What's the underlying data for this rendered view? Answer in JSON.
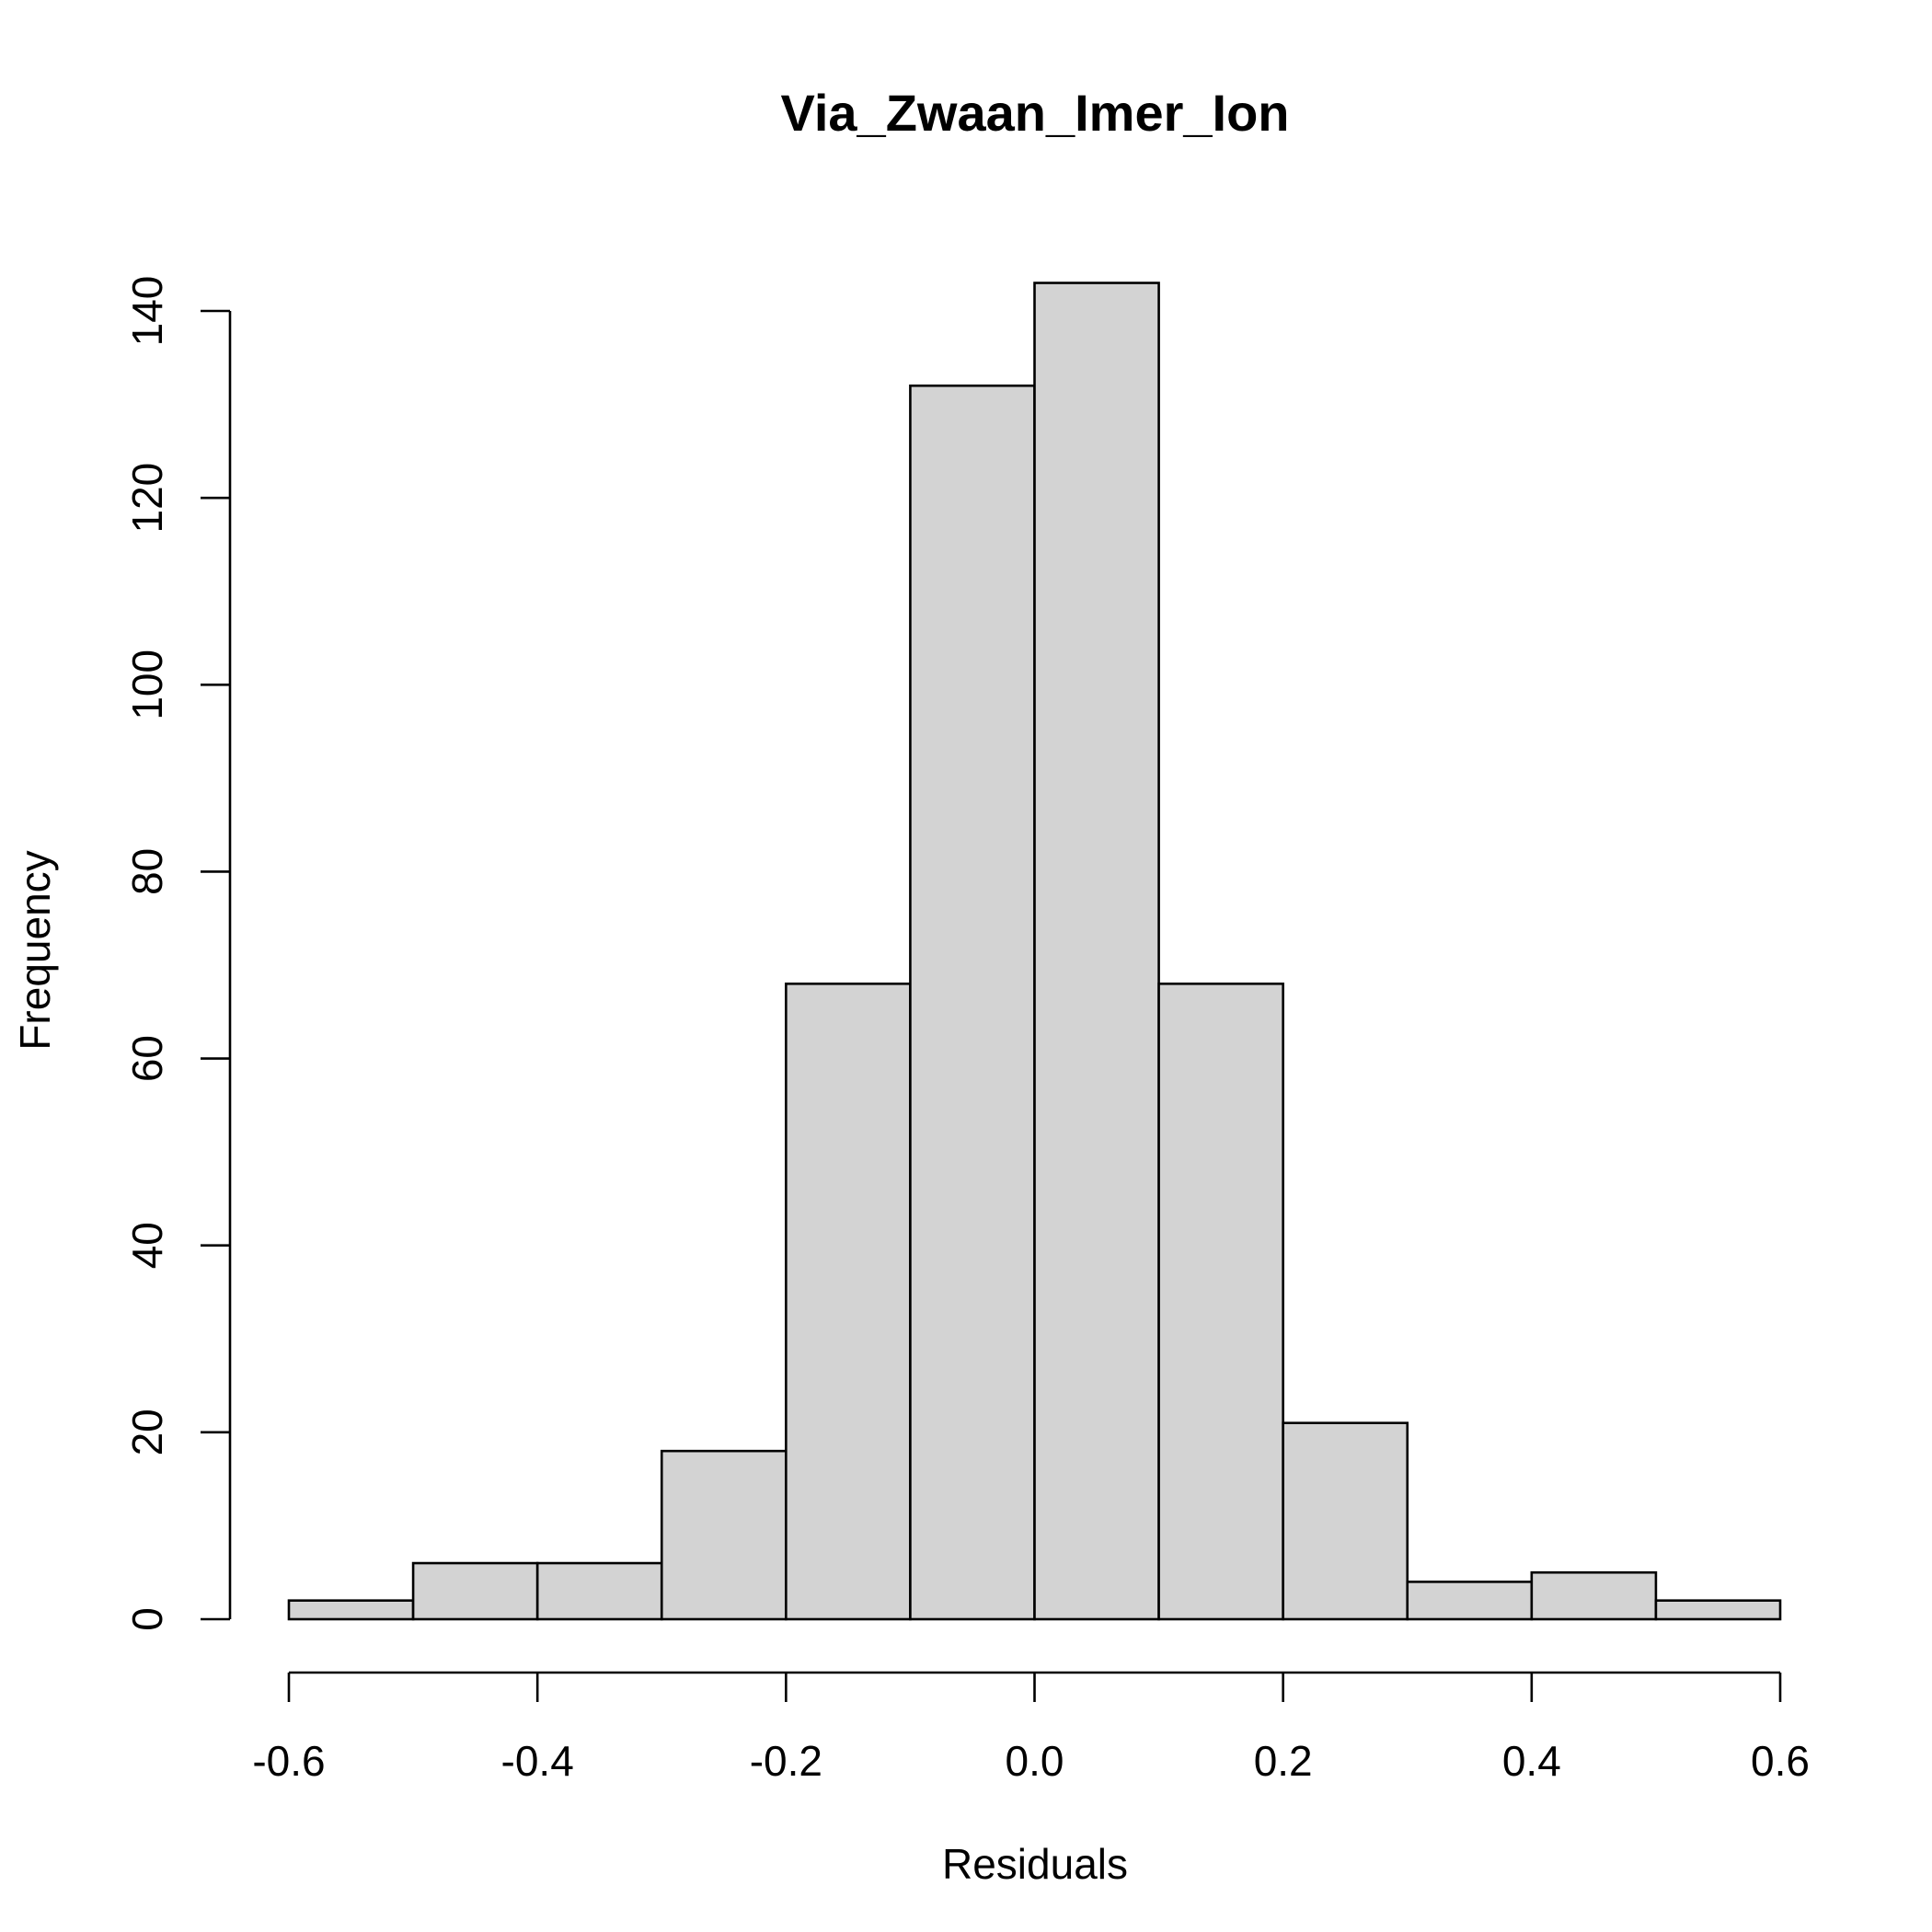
{
  "chart_data": {
    "type": "bar",
    "title": "Via_Zwaan_Imer_Ion",
    "xlabel": "Residuals",
    "ylabel": "Frequency",
    "bins": [
      {
        "from": -0.6,
        "to": -0.5,
        "count": 2
      },
      {
        "from": -0.5,
        "to": -0.4,
        "count": 6
      },
      {
        "from": -0.4,
        "to": -0.3,
        "count": 6
      },
      {
        "from": -0.3,
        "to": -0.2,
        "count": 18
      },
      {
        "from": -0.2,
        "to": -0.1,
        "count": 68
      },
      {
        "from": -0.1,
        "to": 0.0,
        "count": 132
      },
      {
        "from": 0.0,
        "to": 0.1,
        "count": 143
      },
      {
        "from": 0.1,
        "to": 0.2,
        "count": 68
      },
      {
        "from": 0.2,
        "to": 0.3,
        "count": 21
      },
      {
        "from": 0.3,
        "to": 0.4,
        "count": 4
      },
      {
        "from": 0.4,
        "to": 0.5,
        "count": 5
      },
      {
        "from": 0.5,
        "to": 0.6,
        "count": 2
      }
    ],
    "xlim": [
      -0.6,
      0.6
    ],
    "ylim": [
      0,
      140
    ],
    "x_ticks": [
      -0.6,
      -0.4,
      -0.2,
      0.0,
      0.2,
      0.4,
      0.6
    ],
    "x_tick_labels": [
      "-0.6",
      "-0.4",
      "-0.2",
      "0.0",
      "0.2",
      "0.4",
      "0.6"
    ],
    "y_ticks": [
      0,
      20,
      40,
      60,
      80,
      100,
      120,
      140
    ],
    "y_tick_labels": [
      "0",
      "20",
      "40",
      "60",
      "80",
      "100",
      "120",
      "140"
    ],
    "bar_fill": "#d3d3d3",
    "bar_stroke": "#000000",
    "grid": false,
    "legend": "none"
  }
}
